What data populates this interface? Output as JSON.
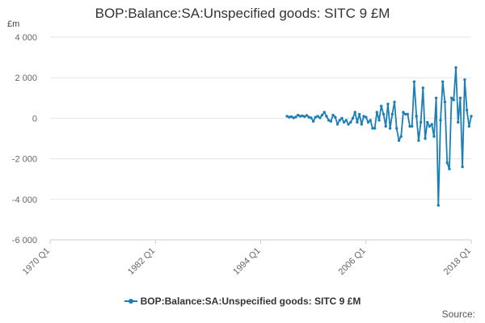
{
  "unit_label": "£m",
  "source_label": "Source:",
  "colors": {
    "series": "#1b7fb5",
    "grid": "#e6e6e6",
    "axis": "#cccccc",
    "text": "#666666"
  },
  "chart_data": {
    "type": "line",
    "title": "BOP:Balance:SA:Unspecified goods: SITC 9 £M",
    "xlabel": "",
    "ylabel": "£m",
    "ylim": [
      -6000,
      4000
    ],
    "yticks": [
      4000,
      2000,
      0,
      -2000,
      -4000,
      -6000
    ],
    "ytick_labels": [
      "4 000",
      "2 000",
      "0",
      "-2 000",
      "-4 000",
      "-6 000"
    ],
    "xrange": [
      "1970 Q1",
      "2018 Q1"
    ],
    "xticks": [
      "1970 Q1",
      "1982 Q1",
      "1994 Q1",
      "2006 Q1",
      "2018 Q1"
    ],
    "grid": true,
    "legend_position": "bottom",
    "series": [
      {
        "name": "BOP:Balance:SA:Unspecified goods: SITC 9 £M",
        "start": "1997 Q1",
        "end": "2018 Q1",
        "values": [
          100,
          50,
          80,
          20,
          60,
          150,
          100,
          120,
          80,
          140,
          50,
          20,
          -150,
          50,
          100,
          20,
          150,
          300,
          100,
          -100,
          -150,
          150,
          50,
          -300,
          -100,
          0,
          -200,
          -100,
          -300,
          -200,
          0,
          300,
          -200,
          200,
          -300,
          100,
          50,
          -200,
          -100,
          -500,
          -500,
          300,
          -100,
          600,
          200,
          -400,
          700,
          -500,
          200,
          800,
          -500,
          -1100,
          -900,
          300,
          200,
          200,
          -400,
          -400,
          1800,
          100,
          -1100,
          -200,
          1500,
          -1000,
          -200,
          -400,
          -300,
          -900,
          1000,
          -4300,
          -100,
          1800,
          800,
          -2200,
          -2500,
          1000,
          900,
          2500,
          -200,
          1000,
          -2400,
          1900,
          400,
          -400,
          100
        ]
      }
    ]
  }
}
